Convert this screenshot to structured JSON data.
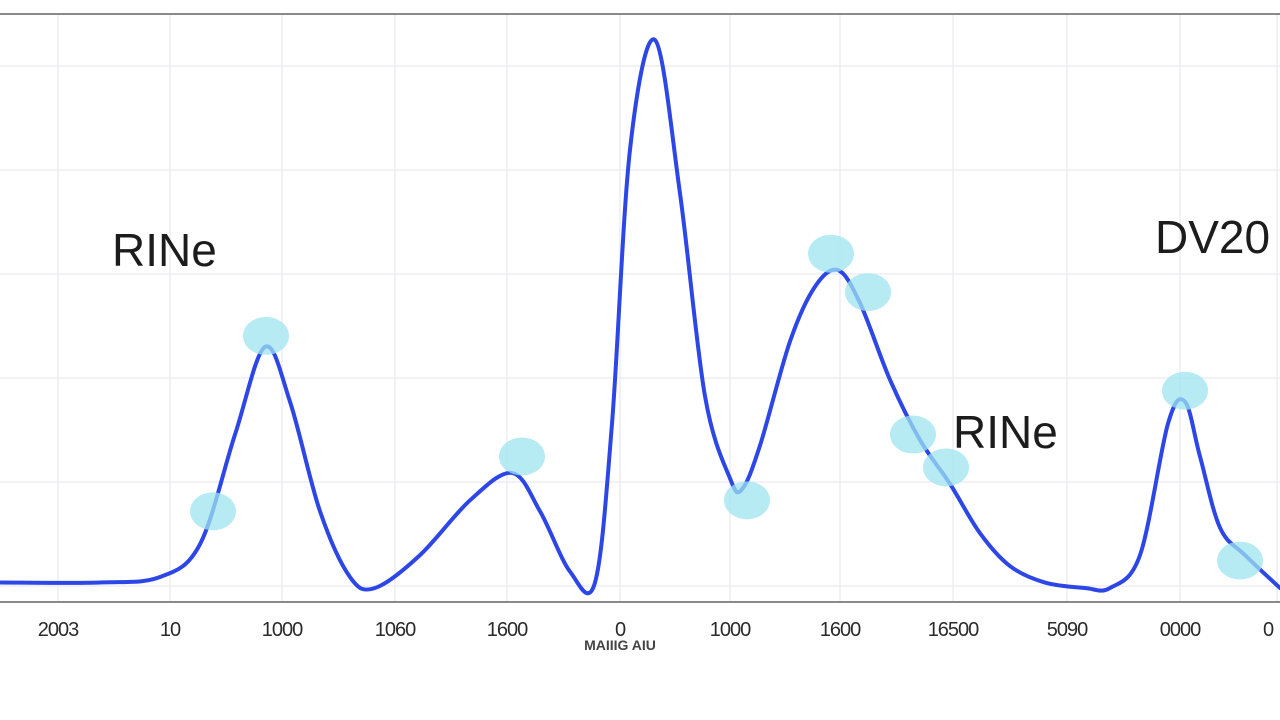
{
  "chart_data": {
    "type": "line",
    "title": "",
    "xlabel": "MAIIIG AIU",
    "ylabel": "",
    "grid": true,
    "legend": "none",
    "xlim": [
      0,
      1280
    ],
    "ylim": [
      0,
      100
    ],
    "colors": {
      "line": "#2d46e6",
      "marker": "#9fe4f0",
      "grid": "#e6e6ee",
      "frame": "#8a8a8a"
    },
    "x_ticks": [
      {
        "value": 58,
        "label": "2003"
      },
      {
        "value": 170,
        "label": "10"
      },
      {
        "value": 282,
        "label": "1000"
      },
      {
        "value": 395,
        "label": "1060"
      },
      {
        "value": 507,
        "label": "1600"
      },
      {
        "value": 620,
        "label": "0"
      },
      {
        "value": 730,
        "label": "1000"
      },
      {
        "value": 840,
        "label": "1600"
      },
      {
        "value": 953,
        "label": "16500"
      },
      {
        "value": 1067,
        "label": "5090"
      },
      {
        "value": 1180,
        "label": "0000"
      },
      {
        "value": 1277,
        "label": "0"
      }
    ],
    "series": [
      {
        "values": [
          [
            0,
            1
          ],
          [
            100,
            1
          ],
          [
            160,
            2
          ],
          [
            200,
            8
          ],
          [
            235,
            28
          ],
          [
            265,
            44
          ],
          [
            290,
            34
          ],
          [
            320,
            14
          ],
          [
            350,
            2
          ],
          [
            375,
            0
          ],
          [
            420,
            6
          ],
          [
            470,
            16
          ],
          [
            512,
            21
          ],
          [
            540,
            14
          ],
          [
            570,
            3
          ],
          [
            595,
            1
          ],
          [
            612,
            30
          ],
          [
            630,
            80
          ],
          [
            655,
            100
          ],
          [
            680,
            72
          ],
          [
            705,
            35
          ],
          [
            730,
            20
          ],
          [
            742,
            18
          ],
          [
            760,
            26
          ],
          [
            790,
            45
          ],
          [
            815,
            55
          ],
          [
            838,
            58
          ],
          [
            860,
            52
          ],
          [
            890,
            38
          ],
          [
            920,
            27
          ],
          [
            950,
            19
          ],
          [
            980,
            10
          ],
          [
            1010,
            4
          ],
          [
            1045,
            1
          ],
          [
            1085,
            0
          ],
          [
            1110,
            0
          ],
          [
            1140,
            6
          ],
          [
            1168,
            30
          ],
          [
            1185,
            34
          ],
          [
            1200,
            24
          ],
          [
            1220,
            11
          ],
          [
            1245,
            6
          ],
          [
            1280,
            0
          ]
        ]
      }
    ],
    "markers": [
      [
        213,
        14
      ],
      [
        266,
        46
      ],
      [
        522,
        24
      ],
      [
        747,
        16
      ],
      [
        831,
        61
      ],
      [
        868,
        54
      ],
      [
        913,
        28
      ],
      [
        946,
        22
      ],
      [
        1185,
        36
      ],
      [
        1240,
        5
      ]
    ],
    "annotations": [
      {
        "text": "RINe"
      },
      {
        "text": "RINe"
      },
      {
        "text": "DV20"
      }
    ]
  }
}
